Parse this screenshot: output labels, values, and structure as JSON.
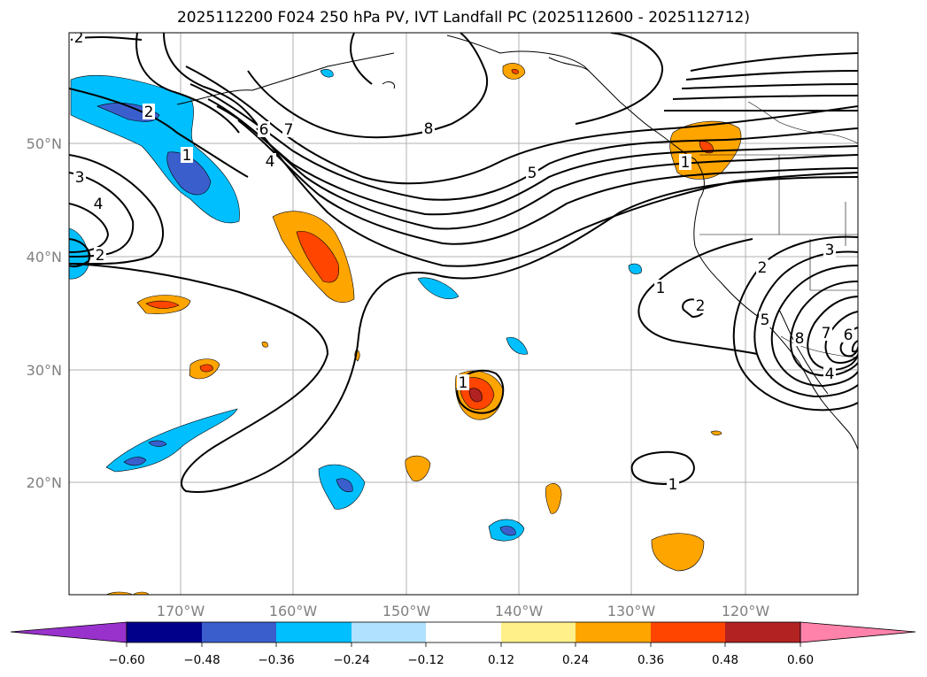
{
  "title": "2025112200 F024 250 hPa PV, IVT Landfall PC (2025112600 - 2025112712)",
  "lat_labels": [
    "50°N",
    "40°N",
    "30°N",
    "20°N"
  ],
  "lon_labels": [
    "170°W",
    "160°W",
    "150°W",
    "140°W",
    "130°W",
    "120°W"
  ],
  "contour_labels": [
    "2",
    "2",
    "3",
    "4",
    "2",
    "1",
    "6",
    "7",
    "4",
    "8",
    "5",
    "1",
    "1",
    "2",
    "1",
    "5",
    "2",
    "3",
    "6",
    "7",
    "8",
    "4",
    "1"
  ],
  "colorbar": {
    "ticks": [
      "−0.60",
      "−0.48",
      "−0.36",
      "−0.24",
      "−0.12",
      "0.12",
      "0.24",
      "0.36",
      "0.48",
      "0.60"
    ],
    "colors": [
      "#9932cc",
      "#00008b",
      "#3a5fcd",
      "#00bfff",
      "#b0e2ff",
      "#ffffff",
      "#fff08a",
      "#ffa500",
      "#ff4500",
      "#b22222",
      "#ff82ab"
    ]
  }
}
